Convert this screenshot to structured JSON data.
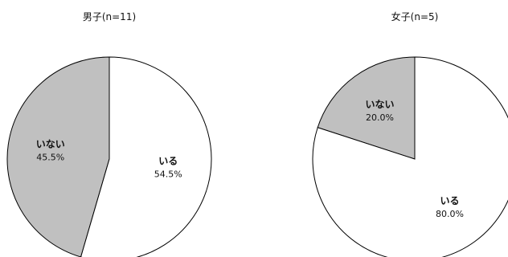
{
  "chart_data": [
    {
      "type": "pie",
      "title": "男子(n=11)",
      "slices": [
        {
          "label": "いる",
          "value": 54.5,
          "display": "54.5%",
          "color": "#ffffff"
        },
        {
          "label": "いない",
          "value": 45.5,
          "display": "45.5%",
          "color": "#c0c0c0"
        }
      ],
      "start": "12 o'clock",
      "direction": "clockwise"
    },
    {
      "type": "pie",
      "title": "女子(n=5)",
      "slices": [
        {
          "label": "いる",
          "value": 80.0,
          "display": "80.0%",
          "color": "#ffffff"
        },
        {
          "label": "いない",
          "value": 20.0,
          "display": "20.0%",
          "color": "#c0c0c0"
        }
      ],
      "start": "12 o'clock",
      "direction": "clockwise"
    }
  ],
  "colors": {
    "slice_outline": "#000000",
    "background": "#ffffff"
  }
}
